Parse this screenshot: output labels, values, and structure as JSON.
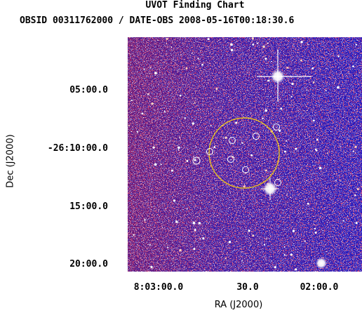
{
  "header": {
    "title": "UVOT Finding Chart",
    "subtitle": "OBSID 00311762000 / DATE-OBS 2008-05-16T00:18:30.6"
  },
  "axes": {
    "x_label": "RA (J2000)",
    "y_label": "Dec (J2000)",
    "x_ticks": [
      "8:03:00.0",
      "30.0",
      "02:00.0"
    ],
    "y_ticks": [
      "05:00.0",
      "-26:10:00.0",
      "15:00.0",
      "20:00.0"
    ]
  },
  "colors": {
    "background_field": "#1414c8",
    "noise_red": "#b0102a",
    "noise_white": "#ffffff",
    "error_circle": "#e8c020",
    "source_marker": "#ffffff"
  }
}
